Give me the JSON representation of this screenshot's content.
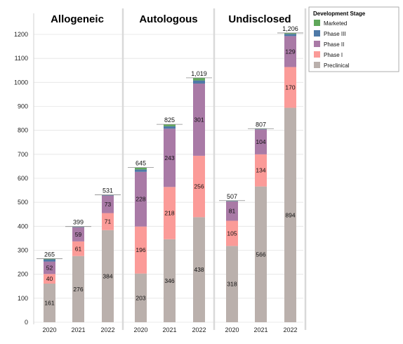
{
  "chart_data": {
    "type": "bar",
    "stacked": true,
    "title": "",
    "xlabel": "",
    "ylabel": "",
    "ylim": [
      0,
      1200
    ],
    "yticks": [
      0,
      100,
      200,
      300,
      400,
      500,
      600,
      700,
      800,
      900,
      1000,
      1100,
      1200
    ],
    "grid": true,
    "legend_position": "top-right",
    "legend_title": "Development Stage",
    "stages": [
      {
        "name": "Marketed",
        "color": "#5fa75a"
      },
      {
        "name": "Phase III",
        "color": "#4e79a7"
      },
      {
        "name": "Phase II",
        "color": "#a97aa6"
      },
      {
        "name": "Phase I",
        "color": "#fb9b98"
      },
      {
        "name": "Preclinical",
        "color": "#bab0ac"
      }
    ],
    "panels": [
      {
        "title": "Allogeneic",
        "categories": [
          "2020",
          "2021",
          "2022"
        ],
        "totals": [
          "265",
          "399",
          "531"
        ],
        "series": [
          {
            "name": "Preclinical",
            "values": [
              161,
              276,
              384
            ]
          },
          {
            "name": "Phase I",
            "values": [
              40,
              61,
              71
            ]
          },
          {
            "name": "Phase II",
            "values": [
              52,
              59,
              73
            ]
          },
          {
            "name": "Phase III",
            "values": [
              9,
              2,
              2
            ]
          },
          {
            "name": "Marketed",
            "values": [
              3,
              1,
              1
            ]
          }
        ]
      },
      {
        "title": "Autologous",
        "categories": [
          "2020",
          "2021",
          "2022"
        ],
        "totals": [
          "645",
          "825",
          "1,019"
        ],
        "series": [
          {
            "name": "Preclinical",
            "values": [
              203,
              346,
              438
            ]
          },
          {
            "name": "Phase I",
            "values": [
              196,
              218,
              256
            ]
          },
          {
            "name": "Phase II",
            "values": [
              228,
              243,
              301
            ]
          },
          {
            "name": "Phase III",
            "values": [
              10,
              10,
              13
            ]
          },
          {
            "name": "Marketed",
            "values": [
              8,
              8,
              11
            ]
          }
        ]
      },
      {
        "title": "Undisclosed",
        "categories": [
          "2020",
          "2021",
          "2022"
        ],
        "totals": [
          "507",
          "807",
          "1,206"
        ],
        "series": [
          {
            "name": "Preclinical",
            "values": [
              318,
              566,
              894
            ]
          },
          {
            "name": "Phase I",
            "values": [
              105,
              134,
              170
            ]
          },
          {
            "name": "Phase II",
            "values": [
              81,
              104,
              129
            ]
          },
          {
            "name": "Phase III",
            "values": [
              2,
              2,
              9
            ]
          },
          {
            "name": "Marketed",
            "values": [
              1,
              1,
              4
            ]
          }
        ]
      }
    ],
    "segment_labels_shown": [
      "Preclinical",
      "Phase I",
      "Phase II"
    ]
  }
}
